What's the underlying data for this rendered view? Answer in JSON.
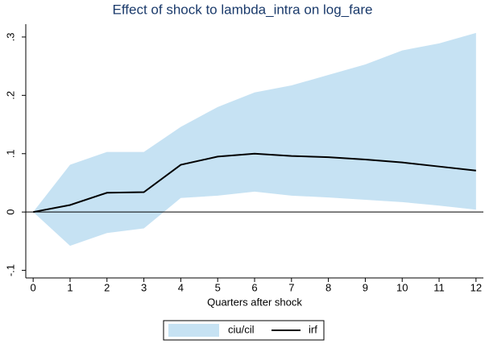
{
  "chart_data": {
    "type": "irf",
    "title": "Effect of shock to lambda_intra on log_fare",
    "x_label": "Quarters after shock",
    "x": [
      0,
      1,
      2,
      3,
      4,
      5,
      6,
      7,
      8,
      9,
      10,
      11,
      12
    ],
    "series": [
      {
        "name": "ciu/cil",
        "color": "#c6e2f3",
        "upper": [
          0,
          0.081,
          0.103,
          0.103,
          0.146,
          0.18,
          0.205,
          0.217,
          0.235,
          0.253,
          0.277,
          0.289,
          0.307
        ],
        "lower": [
          0,
          -0.058,
          -0.036,
          -0.028,
          0.024,
          0.028,
          0.035,
          0.028,
          0.025,
          0.021,
          0.017,
          0.011,
          0.004
        ]
      },
      {
        "name": "irf",
        "color": "#000000",
        "values": [
          0,
          0.012,
          0.033,
          0.034,
          0.081,
          0.095,
          0.1,
          0.096,
          0.094,
          0.09,
          0.085,
          0.078,
          0.071
        ]
      }
    ],
    "xlim": [
      -0.2,
      12.2
    ],
    "ylim": [
      -0.113,
      0.322
    ],
    "xticks": [
      0,
      1,
      2,
      3,
      4,
      5,
      6,
      7,
      8,
      9,
      10,
      11,
      12
    ],
    "yticks": [
      {
        "value": -0.1,
        "label": "-.1"
      },
      0,
      {
        "value": 0.1,
        "label": ".1"
      },
      {
        "value": 0.2,
        "label": ".2"
      },
      {
        "value": 0.3,
        "label": ".3"
      }
    ],
    "yline": 0,
    "legend": "bottom"
  }
}
